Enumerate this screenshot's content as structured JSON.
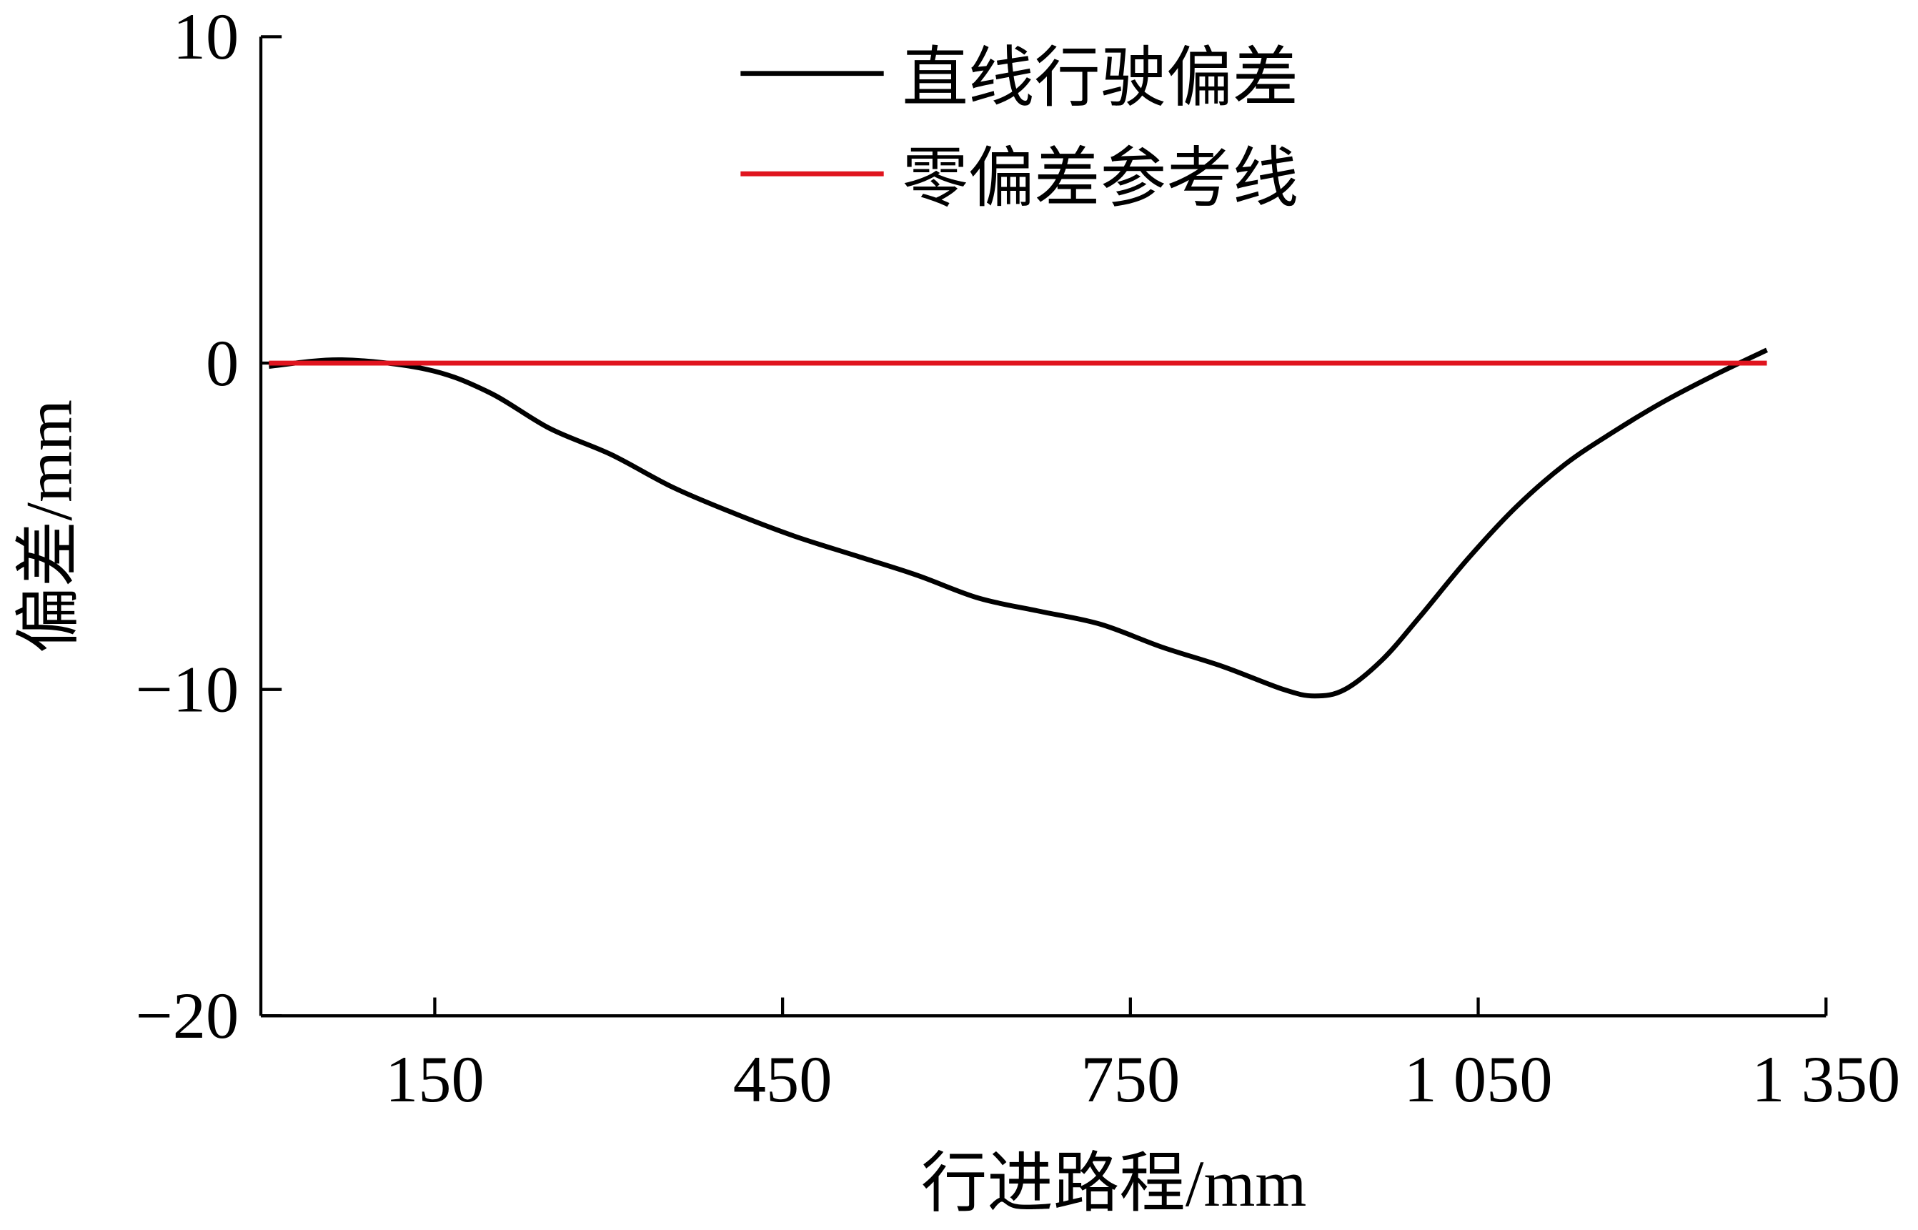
{
  "chart_data": {
    "type": "line",
    "title": "",
    "xlabel": "行进路程/mm",
    "ylabel": "偏差/mm",
    "xlim": [
      0,
      1350
    ],
    "ylim": [
      -20,
      10
    ],
    "xticks": [
      150,
      450,
      750,
      1050,
      1350
    ],
    "xtick_labels": [
      "150",
      "450",
      "750",
      "1 050",
      "1 350"
    ],
    "yticks": [
      10,
      0,
      -10,
      -20
    ],
    "ytick_labels": [
      "10",
      "0",
      "−10",
      "−20"
    ],
    "grid": false,
    "legend_position": "top-center",
    "series": [
      {
        "name": "直线行驶偏差",
        "color": "#000000",
        "x": [
          7,
          70,
          144,
          197,
          249,
          302,
          355,
          408,
          460,
          513,
          566,
          619,
          671,
          724,
          777,
          830,
          882,
          909,
          935,
          967,
          999,
          1041,
          1083,
          1125,
          1167,
          1209,
          1252,
          1299
        ],
        "y": [
          -0.1,
          0.1,
          -0.2,
          -0.9,
          -2.0,
          -2.8,
          -3.8,
          -4.6,
          -5.3,
          -5.9,
          -6.5,
          -7.2,
          -7.6,
          -8.0,
          -8.7,
          -9.3,
          -10.0,
          -10.2,
          -10.0,
          -9.1,
          -7.8,
          -6.0,
          -4.4,
          -3.1,
          -2.1,
          -1.2,
          -0.4,
          0.4
        ]
      },
      {
        "name": "零偏差参考线",
        "color": "#e0141e",
        "x": [
          7,
          1299
        ],
        "y": [
          0,
          0
        ]
      }
    ]
  }
}
